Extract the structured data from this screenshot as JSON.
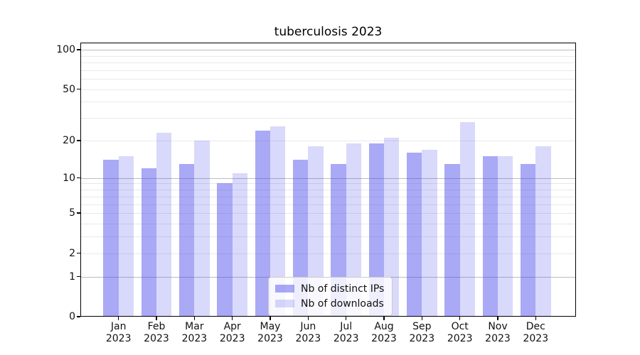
{
  "chart_data": {
    "type": "bar",
    "title": "tuberculosis 2023",
    "categories": [
      "Jan",
      "Feb",
      "Mar",
      "Apr",
      "May",
      "Jun",
      "Jul",
      "Aug",
      "Sep",
      "Oct",
      "Nov",
      "Dec"
    ],
    "category_year": "2023",
    "series": [
      {
        "name": "Nb of distinct IPs",
        "color": "#4141eb73",
        "values": [
          14,
          12,
          13,
          9,
          24,
          14,
          13,
          19,
          16,
          13,
          15,
          13
        ]
      },
      {
        "name": "Nb of downloads",
        "color": "#4141eb33",
        "values": [
          15,
          23,
          20,
          11,
          26,
          18,
          19,
          21,
          17,
          28,
          15,
          18
        ]
      }
    ],
    "yscale": "log10(1+y)",
    "ylim": [
      0,
      114
    ],
    "ytick_values": [
      0,
      1,
      2,
      5,
      10,
      20,
      50,
      100
    ],
    "ytick_labels": [
      "0",
      "1",
      "2",
      "5",
      "10",
      "20",
      "50",
      "100"
    ],
    "major_gridlines": [
      1,
      10,
      100
    ],
    "minor_gridlines": [
      2,
      3,
      4,
      5,
      6,
      7,
      8,
      9,
      20,
      30,
      40,
      50,
      60,
      70,
      80,
      90
    ],
    "grid": true,
    "legend_position": "lower center",
    "colors": {
      "bar_base": "#4141eb",
      "grid_major": "#bcbcbc",
      "grid_minor": "#e9e9e9",
      "axis": "#000000"
    }
  }
}
